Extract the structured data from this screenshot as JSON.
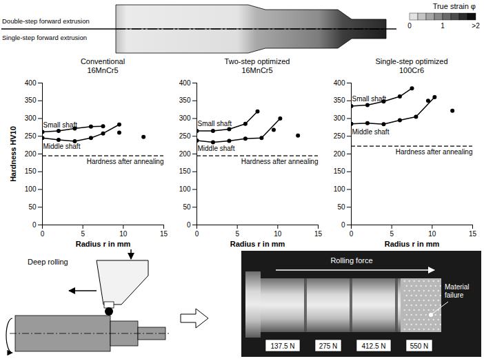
{
  "strain_figure": {
    "labels": [
      "Double-step forward extrusion",
      "Single-step forward extrusion"
    ],
    "colorbar": {
      "title": "True strain φ",
      "range": [
        0,
        2
      ],
      "ticks": [
        0,
        1,
        {
          "value": 2,
          "label": ">2"
        }
      ]
    }
  },
  "chart_data": [
    {
      "type": "line",
      "title": "Conventional",
      "subtitle": "16MnCr5",
      "x_label": "Radius r in mm",
      "y_label": "Hardness HV10",
      "xlim": [
        0,
        15
      ],
      "xticks": [
        0,
        5,
        10,
        15
      ],
      "ylim": [
        0,
        400
      ],
      "yticks": [
        0,
        50,
        100,
        150,
        200,
        250,
        300,
        350,
        400
      ],
      "grid": false,
      "series": [
        {
          "name": "Small shaft",
          "color": "#000000",
          "marker": "circle",
          "x": [
            0,
            2,
            4,
            6,
            7.5
          ],
          "values": [
            262,
            265,
            272,
            277,
            278
          ]
        },
        {
          "name": "Middle shaft",
          "color": "#000000",
          "marker": "circle",
          "x": [
            0,
            2,
            4,
            6,
            7.5,
            9.5
          ],
          "values": [
            245,
            240,
            236,
            245,
            258,
            283
          ]
        },
        {
          "type": "scatter",
          "color": "#000000",
          "marker": "circle",
          "x": [
            9.5,
            12.5
          ],
          "values": [
            260,
            248
          ]
        }
      ],
      "reference_line": {
        "value": 195,
        "label": "Hardness after annealing",
        "line_style": "dashed"
      }
    },
    {
      "type": "line",
      "title": "Two-step optimized",
      "subtitle": "16MnCr5",
      "x_label": "Radius r in mm",
      "xlim": [
        0,
        15
      ],
      "xticks": [
        0,
        5,
        10,
        15
      ],
      "ylim": [
        0,
        400
      ],
      "yticks": [
        0,
        50,
        100,
        150,
        200,
        250,
        300,
        350,
        400
      ],
      "grid": false,
      "series": [
        {
          "name": "Small shaft",
          "color": "#000000",
          "marker": "circle",
          "x": [
            0,
            2,
            4,
            6,
            7.5
          ],
          "values": [
            265,
            265,
            270,
            285,
            320
          ]
        },
        {
          "name": "Middle shaft",
          "color": "#000000",
          "marker": "circle",
          "x": [
            0,
            2,
            4,
            6,
            8,
            10.3
          ],
          "values": [
            238,
            233,
            237,
            243,
            245,
            300
          ]
        },
        {
          "type": "scatter",
          "color": "#000000",
          "marker": "circle",
          "x": [
            9.5,
            12.5
          ],
          "values": [
            268,
            252
          ]
        }
      ],
      "reference_line": {
        "value": 195,
        "label": "Hardness after annealing",
        "line_style": "dashed"
      }
    },
    {
      "type": "line",
      "title": "Single-step optimized",
      "subtitle": "100Cr6",
      "x_label": "Radius r in mm",
      "xlim": [
        0,
        15
      ],
      "xticks": [
        0,
        5,
        10,
        15
      ],
      "ylim": [
        0,
        400
      ],
      "yticks": [
        0,
        50,
        100,
        150,
        200,
        250,
        300,
        350,
        400
      ],
      "grid": false,
      "series": [
        {
          "name": "Small shaft",
          "color": "#000000",
          "marker": "circle",
          "x": [
            0,
            2,
            4,
            6,
            7.5
          ],
          "values": [
            335,
            338,
            348,
            362,
            385
          ]
        },
        {
          "name": "Middle shaft",
          "color": "#000000",
          "marker": "circle",
          "x": [
            0,
            2,
            4,
            6,
            8,
            10.3
          ],
          "values": [
            285,
            287,
            284,
            295,
            305,
            360
          ]
        },
        {
          "type": "scatter",
          "color": "#000000",
          "marker": "circle",
          "x": [
            9.5,
            12.5
          ],
          "values": [
            350,
            322
          ]
        }
      ],
      "reference_line": {
        "value": 222,
        "label": "Hardness after annealing",
        "line_style": "dashed"
      }
    }
  ],
  "deep_rolling": {
    "label": "Deep rolling",
    "photo": {
      "arrow_label": "Rolling force",
      "failure_label": "Material failure",
      "forces": [
        {
          "value": 137.5,
          "label": "137.5 N"
        },
        {
          "value": 275,
          "label": "275 N"
        },
        {
          "value": 412.5,
          "label": "412.5 N"
        },
        {
          "value": 550,
          "label": "550 N"
        }
      ]
    }
  }
}
